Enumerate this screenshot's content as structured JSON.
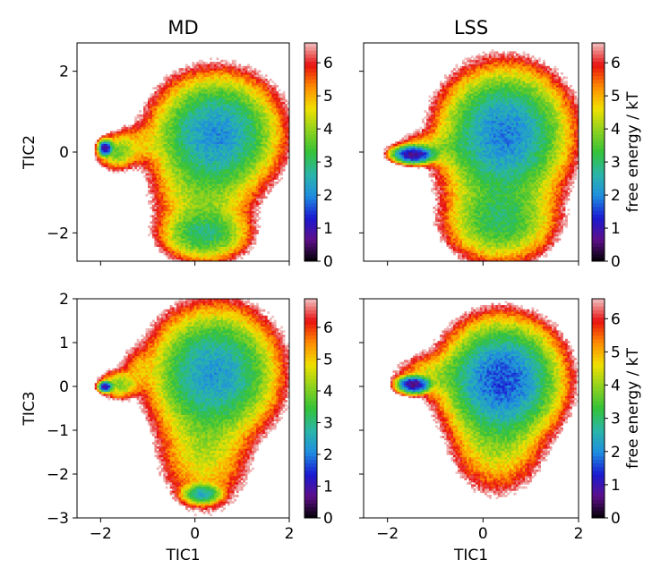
{
  "figure": {
    "colorbar_label": "free energy / kT",
    "colormap": [
      "#000000",
      "#5e0f8a",
      "#1a1ad2",
      "#1f8ee0",
      "#2ab6a8",
      "#34c23a",
      "#8ed21e",
      "#f0e000",
      "#ff8c00",
      "#e81010",
      "#f0c0c0"
    ]
  },
  "chart_data": [
    {
      "type": "heatmap",
      "title": "MD",
      "xlabel": "",
      "ylabel": "TIC2",
      "xlim": [
        -2.5,
        2.0
      ],
      "ylim": [
        -2.7,
        2.7
      ],
      "xticks": [
        -2,
        0,
        2
      ],
      "yticks": [
        -2,
        0,
        2
      ],
      "xtick_labels": [
        "",
        "",
        ""
      ],
      "ytick_labels": [
        "−2",
        "0",
        "2"
      ],
      "colorbar": {
        "min": 0,
        "max": 6.6,
        "ticks": [
          0,
          1,
          2,
          3,
          4,
          5,
          6
        ],
        "tick_labels": [
          "0",
          "1",
          "2",
          "3",
          "4",
          "5",
          "6"
        ],
        "label": ""
      },
      "basins": [
        {
          "x": 0.45,
          "y": 0.45,
          "sx": 0.55,
          "sy": 0.6,
          "depth": 4.5
        },
        {
          "x": -1.9,
          "y": 0.1,
          "sx": 0.06,
          "sy": 0.08,
          "depth": 5.9
        },
        {
          "x": -1.65,
          "y": 0.0,
          "sx": 0.2,
          "sy": 0.2,
          "depth": 2.8
        },
        {
          "x": 0.2,
          "y": -2.0,
          "sx": 0.4,
          "sy": 0.3,
          "depth": 3.6
        },
        {
          "x": 0.2,
          "y": -0.9,
          "sx": 0.5,
          "sy": 0.7,
          "depth": 2.6
        },
        {
          "x": -1.2,
          "y": 0.2,
          "sx": 0.35,
          "sy": 0.25,
          "depth": 1.6
        }
      ]
    },
    {
      "type": "heatmap",
      "title": "LSS",
      "xlabel": "",
      "ylabel": "",
      "xlim": [
        -2.5,
        2.0
      ],
      "ylim": [
        -2.7,
        2.7
      ],
      "xticks": [
        -2,
        0,
        2
      ],
      "yticks": [
        -2,
        0,
        2
      ],
      "xtick_labels": [
        "",
        "",
        ""
      ],
      "ytick_labels": [
        "",
        "",
        ""
      ],
      "colorbar": {
        "min": 0,
        "max": 6.6,
        "ticks": [
          0,
          1,
          2,
          3,
          4,
          5,
          6
        ],
        "tick_labels": [
          "0",
          "1",
          "2",
          "3",
          "4",
          "5",
          "6"
        ],
        "label": "free energy / kT"
      },
      "basins": [
        {
          "x": 0.45,
          "y": 0.5,
          "sx": 0.55,
          "sy": 0.65,
          "depth": 4.6
        },
        {
          "x": -1.45,
          "y": -0.05,
          "sx": 0.18,
          "sy": 0.09,
          "depth": 5.9
        },
        {
          "x": -0.9,
          "y": 0.1,
          "sx": 0.45,
          "sy": 0.2,
          "depth": 2.2
        },
        {
          "x": 0.35,
          "y": -1.7,
          "sx": 0.5,
          "sy": 0.45,
          "depth": 3.4
        },
        {
          "x": 0.4,
          "y": -0.6,
          "sx": 0.55,
          "sy": 0.7,
          "depth": 2.8
        }
      ]
    },
    {
      "type": "heatmap",
      "title": "",
      "xlabel": "TIC1",
      "ylabel": "TIC3",
      "xlim": [
        -2.5,
        2.0
      ],
      "ylim": [
        -3.0,
        2.0
      ],
      "xticks": [
        -2,
        0,
        2
      ],
      "yticks": [
        -3,
        -2,
        -1,
        0,
        1,
        2
      ],
      "xtick_labels": [
        "−2",
        "0",
        "2"
      ],
      "ytick_labels": [
        "−3",
        "−2",
        "−1",
        "0",
        "1",
        "2"
      ],
      "colorbar": {
        "min": 0,
        "max": 6.9,
        "ticks": [
          0,
          1,
          2,
          3,
          4,
          5,
          6
        ],
        "tick_labels": [
          "0",
          "1",
          "2",
          "3",
          "4",
          "5",
          "6"
        ],
        "label": ""
      },
      "basins": [
        {
          "x": 0.4,
          "y": 0.3,
          "sx": 0.55,
          "sy": 0.6,
          "depth": 4.6
        },
        {
          "x": -1.9,
          "y": 0.0,
          "sx": 0.06,
          "sy": 0.05,
          "depth": 6.1
        },
        {
          "x": -1.6,
          "y": 0.05,
          "sx": 0.2,
          "sy": 0.15,
          "depth": 2.8
        },
        {
          "x": 0.15,
          "y": -2.45,
          "sx": 0.18,
          "sy": 0.1,
          "depth": 4.4
        },
        {
          "x": 0.2,
          "y": -1.3,
          "sx": 0.45,
          "sy": 0.7,
          "depth": 2.5
        },
        {
          "x": -1.2,
          "y": 0.4,
          "sx": 0.2,
          "sy": 0.25,
          "depth": 1.5
        }
      ]
    },
    {
      "type": "heatmap",
      "title": "",
      "xlabel": "TIC1",
      "ylabel": "",
      "xlim": [
        -2.5,
        2.0
      ],
      "ylim": [
        -3.0,
        2.0
      ],
      "xticks": [
        -2,
        0,
        2
      ],
      "yticks": [
        -3,
        -2,
        -1,
        0,
        1,
        2
      ],
      "xtick_labels": [
        "−2",
        "0",
        "2"
      ],
      "ytick_labels": [
        "",
        "",
        "",
        "",
        "",
        ""
      ],
      "colorbar": {
        "min": 0,
        "max": 6.6,
        "ticks": [
          0,
          1,
          2,
          3,
          4,
          5,
          6
        ],
        "tick_labels": [
          "0",
          "1",
          "2",
          "3",
          "4",
          "5",
          "6"
        ],
        "label": "free energy / kT"
      },
      "basins": [
        {
          "x": 0.4,
          "y": 0.15,
          "sx": 0.5,
          "sy": 0.55,
          "depth": 5.0
        },
        {
          "x": -1.45,
          "y": 0.05,
          "sx": 0.14,
          "sy": 0.08,
          "depth": 6.0
        },
        {
          "x": -0.9,
          "y": 0.25,
          "sx": 0.45,
          "sy": 0.25,
          "depth": 2.2
        },
        {
          "x": 0.3,
          "y": -1.1,
          "sx": 0.45,
          "sy": 0.6,
          "depth": 2.6
        }
      ]
    }
  ]
}
